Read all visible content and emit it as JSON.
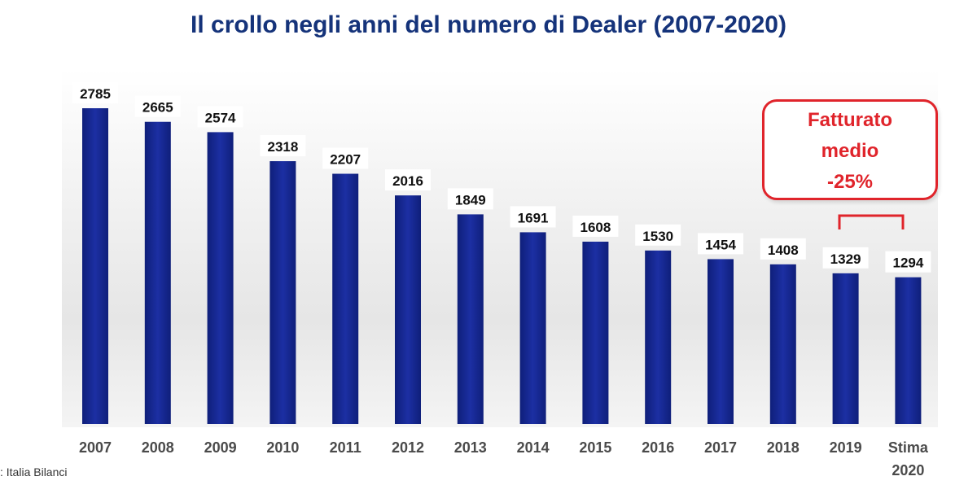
{
  "source": ": Italia Bilanci",
  "callout": {
    "line1": "Fatturato",
    "line2": "medio",
    "line3": "-25%"
  },
  "colors": {
    "bar": "#16268f",
    "title": "#15337a",
    "callout": "#e0242b"
  },
  "chart_data": {
    "type": "bar",
    "title": "Il crollo negli anni del numero di Dealer (2007-2020)",
    "categories": [
      [
        "2007"
      ],
      [
        "2008"
      ],
      [
        "2009"
      ],
      [
        "2010"
      ],
      [
        "2011"
      ],
      [
        "2012"
      ],
      [
        "2013"
      ],
      [
        "2014"
      ],
      [
        "2015"
      ],
      [
        "2016"
      ],
      [
        "2017"
      ],
      [
        "2018"
      ],
      [
        "2019"
      ],
      [
        "Stima",
        "2020"
      ]
    ],
    "values": [
      2785,
      2665,
      2574,
      2318,
      2207,
      2016,
      1849,
      1691,
      1608,
      1530,
      1454,
      1408,
      1329,
      1294
    ],
    "xlabel": "",
    "ylabel": "",
    "ylim": [
      0,
      2900
    ],
    "grid": false,
    "legend": "none",
    "annotation_bracket": [
      "2019",
      [
        "Stima",
        "2020"
      ]
    ]
  }
}
